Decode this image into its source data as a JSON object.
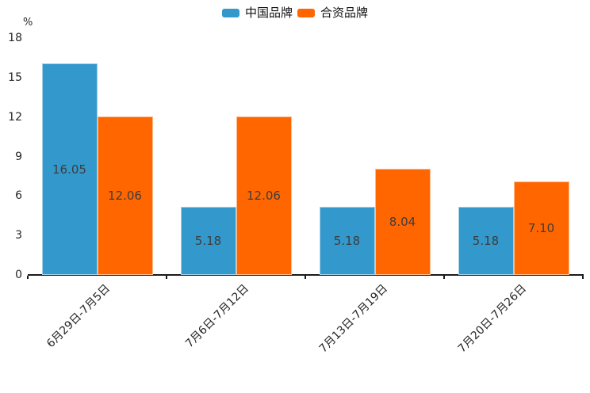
{
  "chart_data": {
    "type": "bar",
    "title": "",
    "unit": "%",
    "categories": [
      "6月29日-7月5日",
      "7月6日-7月12日",
      "7月13日-7月19日",
      "7月20日-7月26日"
    ],
    "series": [
      {
        "name": "中国品牌",
        "color": "#3398CB",
        "values": [
          16.05,
          5.18,
          5.18,
          5.18
        ],
        "value_labels": [
          "16.05",
          "5.18",
          "5.18",
          "5.18"
        ]
      },
      {
        "name": "合资品牌",
        "color": "#FF6600",
        "values": [
          12.06,
          12.06,
          8.04,
          7.1
        ],
        "value_labels": [
          "12.06",
          "12.06",
          "8.04",
          "7.10"
        ]
      }
    ],
    "ylim": [
      0,
      18
    ],
    "yticks": [
      0,
      3,
      6,
      9,
      12,
      15,
      18
    ],
    "legend_position": "top",
    "grid": false,
    "axis_color": "#1a1a1a",
    "tick_label_color": "#262626",
    "value_label_color": "#3d3d3d"
  }
}
